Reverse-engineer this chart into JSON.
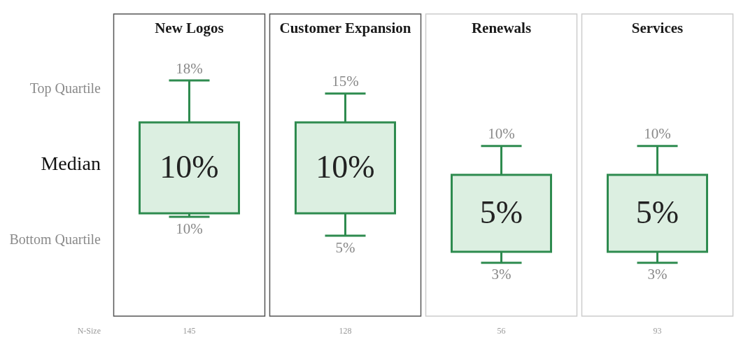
{
  "chart_data": {
    "type": "other",
    "categories": [
      "New Logos",
      "Customer Expansion",
      "Renewals",
      "Services"
    ],
    "series": [
      {
        "name": "Top Quartile",
        "values": [
          18,
          15,
          10,
          10
        ],
        "value_labels": [
          "18%",
          "15%",
          "10%",
          "10%"
        ]
      },
      {
        "name": "Median",
        "color": "#dcefe1",
        "values": [
          10,
          10,
          5,
          5
        ],
        "value_labels": [
          "10%",
          "10%",
          "5%",
          "5%"
        ]
      },
      {
        "name": "Bottom Quartile",
        "values": [
          10,
          5,
          3,
          3
        ],
        "value_labels": [
          "10%",
          "5%",
          "3%",
          "3%"
        ]
      },
      {
        "name": "N-Size",
        "values": [
          145,
          128,
          56,
          93
        ]
      }
    ],
    "data_labels": true
  }
}
